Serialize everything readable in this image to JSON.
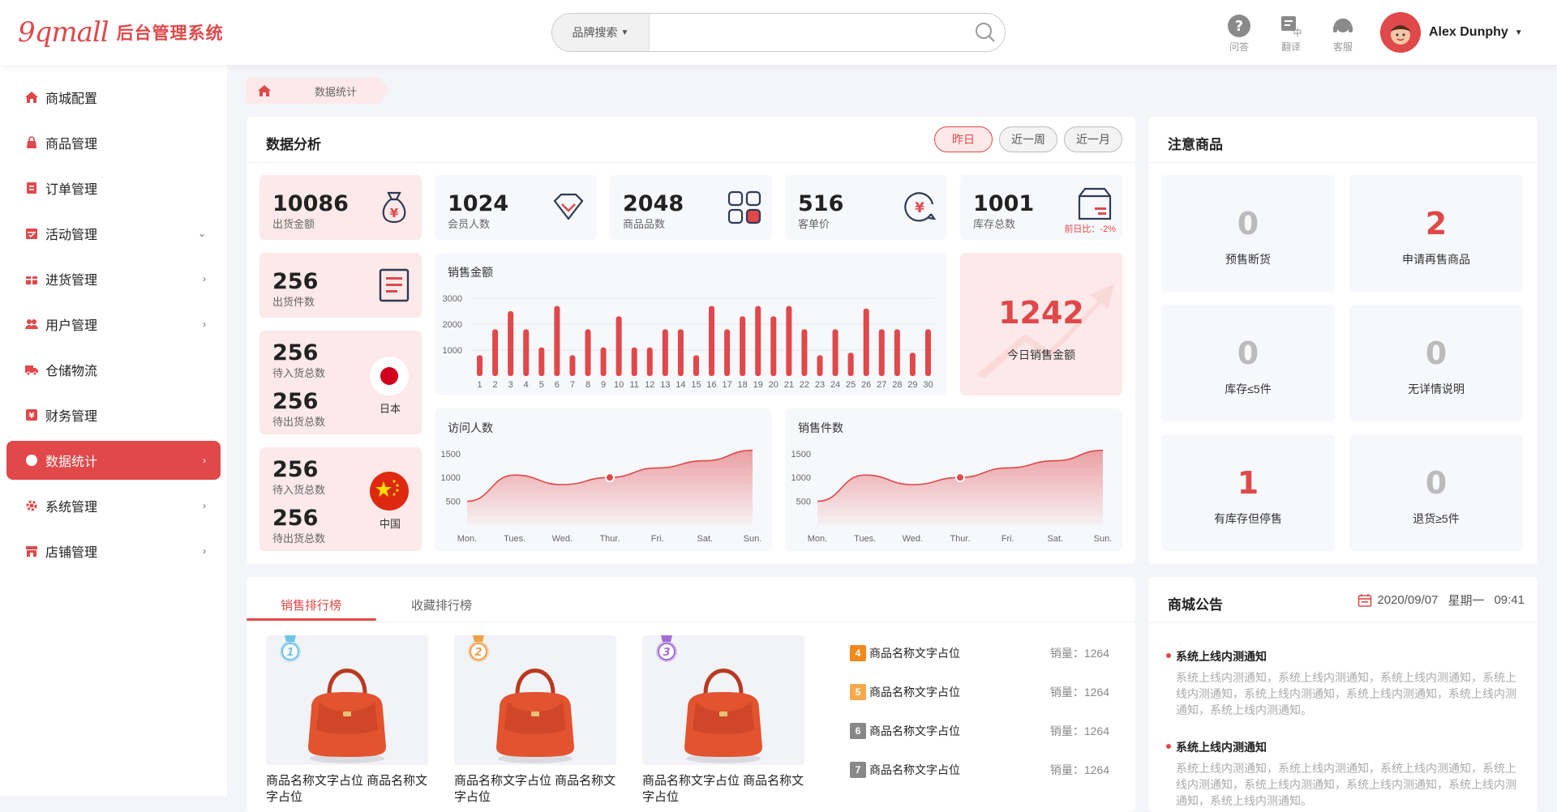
{
  "header": {
    "logo_mark": "9qmall",
    "app_title": "后台管理系统",
    "search": {
      "select_label": "品牌搜索",
      "placeholder": ""
    },
    "tools": [
      {
        "label": "问答",
        "icon": "question-icon"
      },
      {
        "label": "翻译",
        "icon": "translate-icon"
      },
      {
        "label": "客服",
        "icon": "headset-icon"
      }
    ],
    "user_name": "Alex Dunphy"
  },
  "sidebar": {
    "items": [
      {
        "label": "商城配置",
        "icon": "home-icon",
        "arrow": ""
      },
      {
        "label": "商品管理",
        "icon": "bag-icon",
        "arrow": ""
      },
      {
        "label": "订单管理",
        "icon": "order-icon",
        "arrow": ""
      },
      {
        "label": "活动管理",
        "icon": "calendar-icon",
        "arrow": "⌄"
      },
      {
        "label": "进货管理",
        "icon": "gift-icon",
        "arrow": "›"
      },
      {
        "label": "用户管理",
        "icon": "users-icon",
        "arrow": "›"
      },
      {
        "label": "仓储物流",
        "icon": "truck-icon",
        "arrow": ""
      },
      {
        "label": "财务管理",
        "icon": "finance-icon",
        "arrow": ""
      },
      {
        "label": "数据统计",
        "icon": "pie-icon",
        "arrow": "›"
      },
      {
        "label": "系统管理",
        "icon": "gear-icon",
        "arrow": "›"
      },
      {
        "label": "店铺管理",
        "icon": "shop-icon",
        "arrow": "›"
      }
    ],
    "active_index": 8
  },
  "breadcrumb": {
    "current": "数据统计"
  },
  "analysis": {
    "title": "数据分析",
    "ranges": [
      "昨日",
      "近一周",
      "近一月"
    ],
    "stats": [
      {
        "value": "10086",
        "label": "出货金额"
      },
      {
        "value": "1024",
        "label": "会员人数"
      },
      {
        "value": "2048",
        "label": "商品品数"
      },
      {
        "value": "516",
        "label": "客单价"
      },
      {
        "value": "1001",
        "label": "库存总数",
        "compare": "前日比：-2%"
      }
    ],
    "shipped": {
      "value": "256",
      "label": "出货件数"
    },
    "japan": {
      "in_value": "256",
      "in_label": "待入货总数",
      "out_value": "256",
      "out_label": "待出货总数",
      "country": "日本"
    },
    "china": {
      "in_value": "256",
      "in_label": "待入货总数",
      "out_value": "256",
      "out_label": "待出货总数",
      "country": "中国"
    },
    "today": {
      "value": "1242",
      "label": "今日销售金额"
    }
  },
  "chart_data": [
    {
      "type": "bar",
      "title": "销售金额",
      "categories": [
        "1",
        "2",
        "3",
        "4",
        "5",
        "6",
        "7",
        "8",
        "9",
        "10",
        "11",
        "12",
        "13",
        "14",
        "15",
        "16",
        "17",
        "18",
        "19",
        "20",
        "21",
        "22",
        "23",
        "24",
        "25",
        "26",
        "27",
        "28",
        "29",
        "30"
      ],
      "values": [
        800,
        1800,
        2500,
        1800,
        1100,
        2700,
        800,
        1800,
        1100,
        2300,
        1100,
        1100,
        1800,
        1800,
        800,
        2700,
        1800,
        2300,
        2700,
        2300,
        2700,
        1800,
        800,
        1800,
        900,
        2600,
        1800,
        1800,
        900,
        1800
      ],
      "ylim": [
        0,
        3000
      ],
      "yticks": [
        1000,
        2000,
        3000
      ],
      "color": "#e0484a"
    },
    {
      "type": "area",
      "title": "访问人数",
      "categories": [
        "Mon.",
        "Tues.",
        "Wed.",
        "Thur.",
        "Fri.",
        "Sat.",
        "Sun."
      ],
      "values": [
        500,
        1050,
        850,
        1000,
        1200,
        1350,
        1570
      ],
      "ylim": [
        0,
        1700
      ],
      "yticks": [
        500,
        1000,
        1500
      ],
      "highlight_index": 3,
      "color": "#e0484a"
    },
    {
      "type": "area",
      "title": "销售件数",
      "categories": [
        "Mon.",
        "Tues.",
        "Wed.",
        "Thur.",
        "Fri.",
        "Sat.",
        "Sun."
      ],
      "values": [
        500,
        1050,
        850,
        1000,
        1200,
        1350,
        1570
      ],
      "ylim": [
        0,
        1700
      ],
      "yticks": [
        500,
        1000,
        1500
      ],
      "highlight_index": 3,
      "color": "#e0484a"
    }
  ],
  "attention": {
    "title": "注意商品",
    "items": [
      {
        "value": "0",
        "label": "预售断货",
        "red": false
      },
      {
        "value": "2",
        "label": "申请再售商品",
        "red": true
      },
      {
        "value": "0",
        "label": "库存≤5件",
        "red": false
      },
      {
        "value": "0",
        "label": "无详情说明",
        "red": false
      },
      {
        "value": "1",
        "label": "有库存但停售",
        "red": true
      },
      {
        "value": "0",
        "label": "退货≥5件",
        "red": false
      }
    ]
  },
  "ranking": {
    "tabs": [
      "销售排行榜",
      "收藏排行榜"
    ],
    "top": [
      {
        "rank": "1",
        "name": "商品名称文字占位 商品名称文字占位",
        "medal_color": "#6fc3e8"
      },
      {
        "rank": "2",
        "name": "商品名称文字占位 商品名称文字占位",
        "medal_color": "#f0a04b"
      },
      {
        "rank": "3",
        "name": "商品名称文字占位 商品名称文字占位",
        "medal_color": "#a66ad6"
      }
    ],
    "list": [
      {
        "rank": "4",
        "name": "商品名称文字占位",
        "sales": "销量：1264",
        "color": "#f08a1c"
      },
      {
        "rank": "5",
        "name": "商品名称文字占位",
        "sales": "销量：1264",
        "color": "#f5a94a"
      },
      {
        "rank": "6",
        "name": "商品名称文字占位",
        "sales": "销量：1264",
        "color": "#888888"
      },
      {
        "rank": "7",
        "name": "商品名称文字占位",
        "sales": "销量：1264",
        "color": "#888888"
      }
    ]
  },
  "notice": {
    "title": "商城公告",
    "date": "2020/09/07",
    "weekday": "星期一",
    "time": "09:41",
    "items": [
      {
        "title": "系统上线内测通知",
        "body": "系统上线内测通知，系统上线内测通知，系统上线内测通知，系统上线内测通知，系统上线内测通知，系统上线内测通知，系统上线内测通知，系统上线内测通知。"
      },
      {
        "title": "系统上线内测通知",
        "body": "系统上线内测通知，系统上线内测通知，系统上线内测通知，系统上线内测通知，系统上线内测通知，系统上线内测通知，系统上线内测通知，系统上线内测通知。"
      }
    ]
  }
}
